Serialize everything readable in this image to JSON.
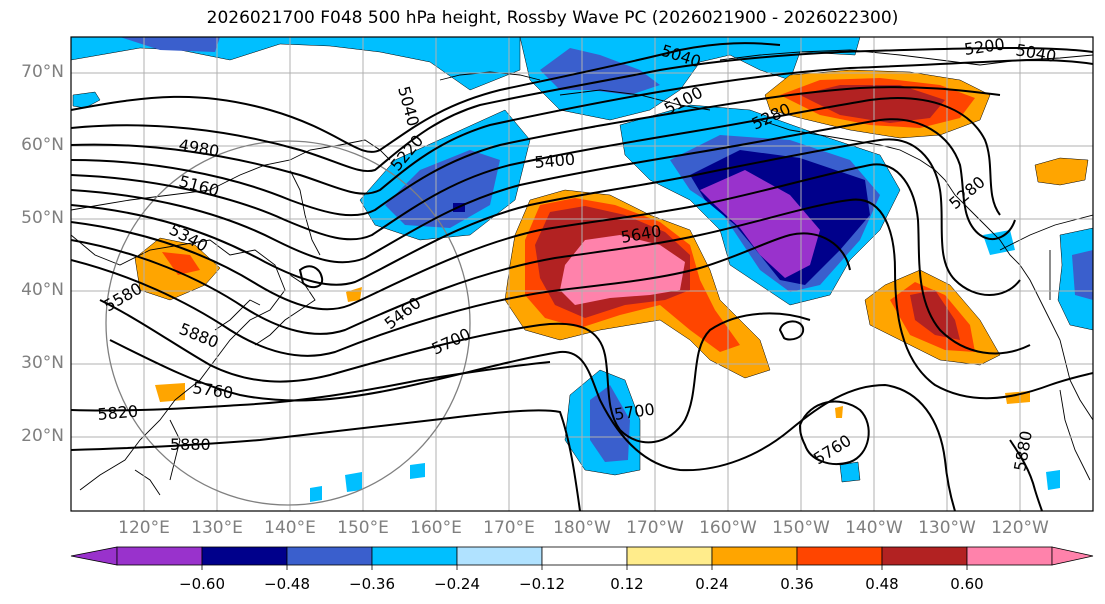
{
  "title": "2026021700 F048 500 hPa height, Rossby Wave PC (2026021900 - 2026022300)",
  "lat_labels": [
    "70°N",
    "60°N",
    "50°N",
    "40°N",
    "30°N",
    "20°N"
  ],
  "lon_labels": [
    "120°E",
    "130°E",
    "140°E",
    "150°E",
    "160°E",
    "170°E",
    "180°W",
    "170°W",
    "160°W",
    "150°W",
    "140°W",
    "130°W",
    "120°W"
  ],
  "colorbar": {
    "tick_labels": [
      "−0.60",
      "−0.48",
      "−0.36",
      "−0.24",
      "−0.12",
      "0.12",
      "0.24",
      "0.36",
      "0.48",
      "0.60"
    ],
    "colors": [
      "#9932cc",
      "#00008b",
      "#3a5fcd",
      "#00bfff",
      "#b0e2ff",
      "#ffffff",
      "#ffec8b",
      "#ffa500",
      "#ff4500",
      "#b22222",
      "#ff82ab"
    ]
  },
  "height_labels": [
    "5040",
    "5200",
    "5040",
    "5040",
    "5100",
    "5280",
    "4980",
    "5220",
    "5400",
    "5160",
    "5640",
    "5280",
    "5340",
    "5460",
    "5580",
    "5700",
    "5880",
    "5700",
    "5760",
    "5820",
    "5880",
    "5760",
    "5880"
  ],
  "map": {
    "domain": "North Pacific",
    "lat_range": [
      10,
      75
    ],
    "lon_range_deg_east": [
      112,
      252
    ],
    "fields": [
      "500 hPa geopotential height (contours)",
      "Rossby wave PC (shaded)"
    ]
  }
}
